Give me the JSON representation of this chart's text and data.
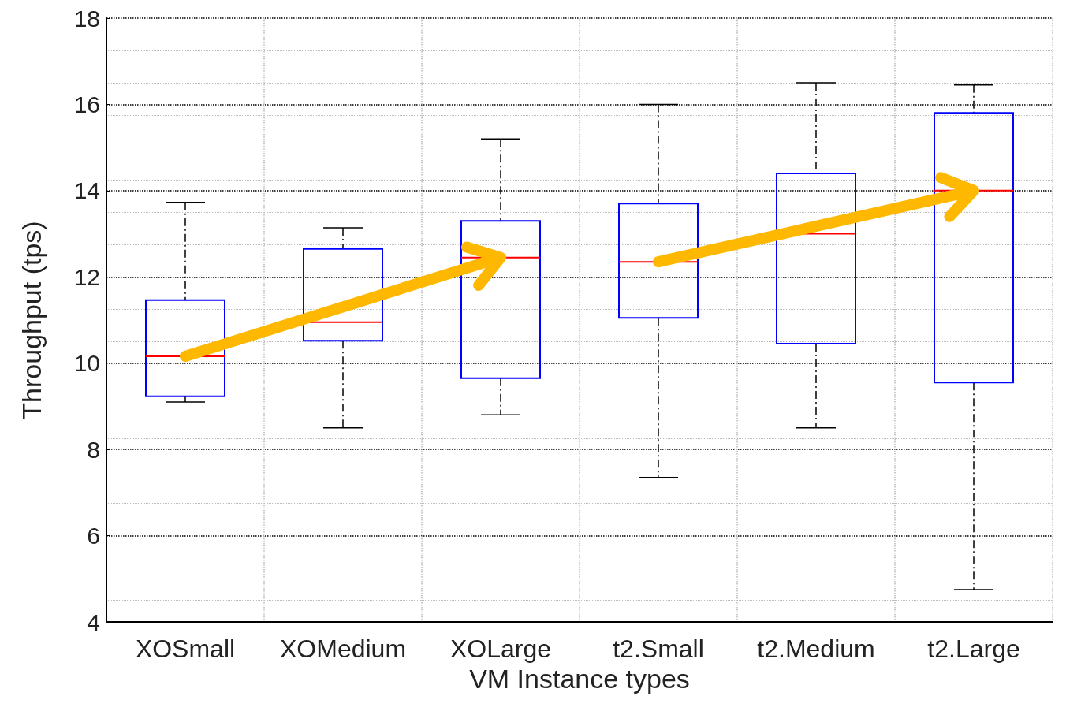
{
  "chart_data": {
    "type": "box",
    "xlabel": "VM Instance types",
    "ylabel": "Throughput (tps)",
    "categories": [
      "XOSmall",
      "XOMedium",
      "XOLarge",
      "t2.Small",
      "t2.Medium",
      "t2.Large"
    ],
    "color": "#0000ff",
    "boxes": [
      {
        "low": 9.1,
        "q1": 9.23,
        "median": 10.16,
        "q3": 11.46,
        "high": 13.73
      },
      {
        "low": 8.5,
        "q1": 10.52,
        "median": 10.95,
        "q3": 12.65,
        "high": 13.14
      },
      {
        "low": 8.8,
        "q1": 9.65,
        "median": 12.45,
        "q3": 13.3,
        "high": 15.2
      },
      {
        "low": 7.35,
        "q1": 11.05,
        "median": 12.35,
        "q3": 13.7,
        "high": 16
      },
      {
        "low": 8.5,
        "q1": 10.45,
        "median": 13,
        "q3": 14.4,
        "high": 16.5
      },
      {
        "low": 4.75,
        "q1": 9.55,
        "median": 14,
        "q3": 15.8,
        "high": 16.45
      }
    ],
    "ylim": [
      4,
      18
    ],
    "yticks": [
      4,
      6,
      8,
      10,
      12,
      14,
      16,
      18
    ],
    "grid": true
  }
}
